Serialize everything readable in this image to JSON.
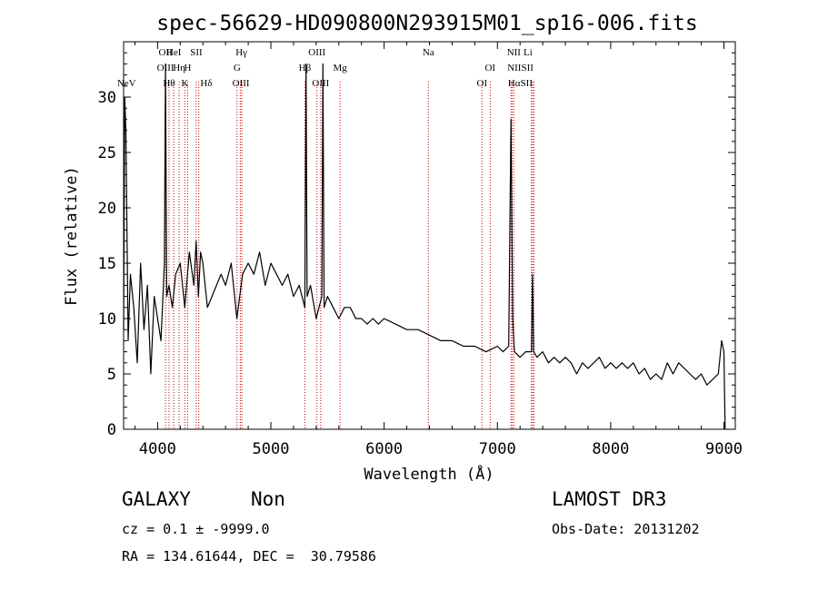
{
  "chart_data": {
    "type": "line",
    "title": "spec-56629-HD090800N293915M01_sp16-006.fits",
    "xlabel": "Wavelength (Å)",
    "ylabel": "Flux (relative)",
    "xlim": [
      3700,
      9100
    ],
    "ylim": [
      0,
      35
    ],
    "x_ticks": [
      4000,
      5000,
      6000,
      7000,
      8000,
      9000
    ],
    "y_ticks": [
      0,
      5,
      10,
      15,
      20,
      25,
      30
    ],
    "grid": false,
    "series": [
      {
        "x": [
          3700,
          3710,
          3720,
          3730,
          3740,
          3760,
          3790,
          3820,
          3850,
          3880,
          3910,
          3940,
          3970,
          4000,
          4030,
          4060,
          4070,
          4080,
          4100,
          4130,
          4160,
          4200,
          4240,
          4280,
          4320,
          4340,
          4360,
          4380,
          4400,
          4440,
          4480,
          4520,
          4560,
          4600,
          4650,
          4700,
          4750,
          4800,
          4850,
          4900,
          4950,
          5000,
          5050,
          5100,
          5150,
          5200,
          5250,
          5300,
          5310,
          5320,
          5350,
          5400,
          5450,
          5460,
          5470,
          5500,
          5550,
          5600,
          5650,
          5700,
          5750,
          5800,
          5850,
          5900,
          5950,
          6000,
          6100,
          6200,
          6300,
          6400,
          6500,
          6600,
          6700,
          6800,
          6900,
          7000,
          7050,
          7100,
          7120,
          7135,
          7150,
          7200,
          7250,
          7300,
          7310,
          7320,
          7350,
          7400,
          7450,
          7500,
          7550,
          7600,
          7650,
          7700,
          7750,
          7800,
          7850,
          7900,
          7950,
          8000,
          8050,
          8100,
          8150,
          8200,
          8250,
          8300,
          8350,
          8400,
          8450,
          8500,
          8550,
          8600,
          8650,
          8700,
          8750,
          8800,
          8850,
          8900,
          8950,
          8980,
          9000,
          9010
        ],
        "y": [
          9,
          30,
          27,
          18,
          8,
          14,
          11,
          6,
          15,
          9,
          13,
          5,
          12,
          10,
          8,
          15,
          33,
          12,
          13,
          11,
          14,
          15,
          11,
          16,
          13,
          17,
          12,
          16,
          15,
          11,
          12,
          13,
          14,
          13,
          15,
          10,
          14,
          15,
          14,
          16,
          13,
          15,
          14,
          13,
          14,
          12,
          13,
          11,
          33,
          12,
          13,
          10,
          12,
          33,
          11,
          12,
          11,
          10,
          11,
          11,
          10,
          10,
          9.5,
          10,
          9.5,
          10,
          9.5,
          9,
          9,
          8.5,
          8,
          8,
          7.5,
          7.5,
          7,
          7.5,
          7,
          7.5,
          28,
          10,
          7,
          6.5,
          7,
          7,
          14,
          7,
          6.5,
          7,
          6,
          6.5,
          6,
          6.5,
          6,
          5,
          6,
          5.5,
          6,
          6.5,
          5.5,
          6,
          5.5,
          6,
          5.5,
          6,
          5,
          5.5,
          4.5,
          5,
          4.5,
          6,
          5,
          6,
          5.5,
          5,
          4.5,
          5,
          4,
          4.5,
          5,
          8,
          7,
          0
        ]
      }
    ],
    "line_markers": [
      {
        "name": "NeV",
        "x": 3726,
        "row": 3
      },
      {
        "name": "OII",
        "x": 4070,
        "row": 0
      },
      {
        "name": "OIII",
        "x": 4070,
        "row": 1
      },
      {
        "name": "Hθ",
        "x": 4101,
        "row": 2
      },
      {
        "name": "HeI",
        "x": 4143,
        "row": 0
      },
      {
        "name": "Hη",
        "x": 4190,
        "row": 1
      },
      {
        "name": "K",
        "x": 4240,
        "row": 2
      },
      {
        "name": "H",
        "x": 4265,
        "row": 1
      },
      {
        "name": "SII",
        "x": 4342,
        "row": 0
      },
      {
        "name": "Hδ",
        "x": 4430,
        "row": 2
      },
      {
        "name": "Hγ",
        "x": 4740,
        "row": 0
      },
      {
        "name": "G",
        "x": 4702,
        "row": 1
      },
      {
        "name": "OIII",
        "x": 4736,
        "row": 2
      },
      {
        "name": "Hβ",
        "x": 5300,
        "row": 1
      },
      {
        "name": "OIII",
        "x": 5407,
        "row": 0
      },
      {
        "name": "OIII",
        "x": 5440,
        "row": 2
      },
      {
        "name": "Mg",
        "x": 5611,
        "row": 1
      },
      {
        "name": "Na",
        "x": 6390,
        "row": 0
      },
      {
        "name": "OI",
        "x": 6936,
        "row": 1
      },
      {
        "name": "OI",
        "x": 6864,
        "row": 2
      },
      {
        "name": "NII",
        "x": 7145,
        "row": 0
      },
      {
        "name": "Li",
        "x": 7270,
        "row": 0
      },
      {
        "name": "NIISII",
        "x": 7203,
        "row": 1
      },
      {
        "name": "HαSII",
        "x": 7202,
        "row": 2
      }
    ],
    "line_positions": [
      4070,
      4101,
      4143,
      4190,
      4240,
      4265,
      4340,
      4363,
      4701,
      4730,
      4744,
      5300,
      5407,
      5440,
      5611,
      6390,
      6864,
      6936,
      7120,
      7130,
      7145,
      7300,
      7310,
      7322
    ]
  },
  "info": {
    "object_class": "GALAXY",
    "subclass": "Non",
    "survey": "LAMOST DR3",
    "redshift_line": "cz = 0.1 ± -9999.0",
    "obs_date": "Obs-Date: 20131202",
    "coords": "RA = 134.61644, DEC =  30.79586"
  },
  "colors": {
    "spectrum": "#000000",
    "marker_line": "#cc0000",
    "axis": "#000000"
  }
}
